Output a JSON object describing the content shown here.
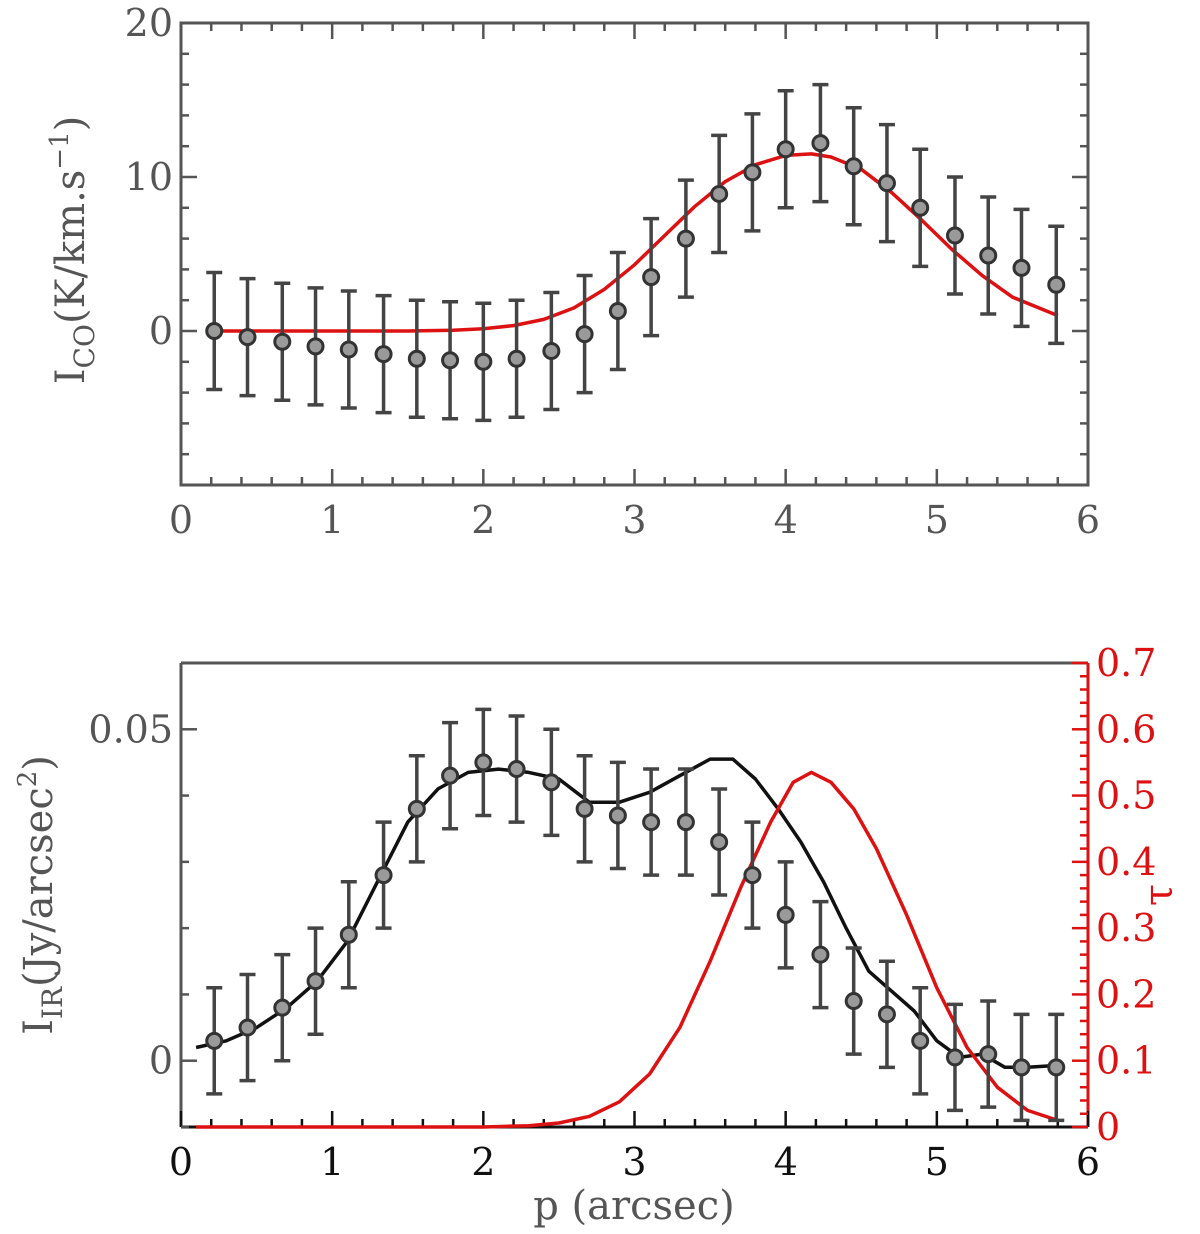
{
  "colors": {
    "axis": "#555555",
    "errorbar": "#444444",
    "marker_fill": "#9a9a9a",
    "marker_edge": "#333333",
    "model_red": "#dd1111",
    "model_black": "#111111"
  },
  "chart_data": [
    {
      "type": "scatter",
      "name": "top",
      "xlim": [
        0,
        6
      ],
      "ylim": [
        -10,
        20
      ],
      "xticks": [
        "0",
        "1",
        "2",
        "3",
        "4",
        "5",
        "6"
      ],
      "yticks": [
        "0",
        "10",
        "20"
      ],
      "ylabel": {
        "main": "I",
        "sub": "CO",
        "rest": "(K/km.s",
        "sup": "−1",
        "close": ")"
      },
      "points": {
        "x": [
          0.22,
          0.44,
          0.67,
          0.89,
          1.11,
          1.34,
          1.56,
          1.78,
          2.0,
          2.22,
          2.45,
          2.67,
          2.89,
          3.11,
          3.34,
          3.56,
          3.78,
          4.0,
          4.23,
          4.45,
          4.67,
          4.89,
          5.12,
          5.34,
          5.56,
          5.79
        ],
        "y": [
          0.0,
          -0.4,
          -0.7,
          -1.0,
          -1.2,
          -1.5,
          -1.8,
          -1.9,
          -2.0,
          -1.8,
          -1.3,
          -0.2,
          1.3,
          3.5,
          6.0,
          8.9,
          10.3,
          11.8,
          12.2,
          10.7,
          9.6,
          8.0,
          6.2,
          4.9,
          4.1,
          3.0
        ],
        "err": [
          3.8,
          3.8,
          3.8,
          3.8,
          3.8,
          3.8,
          3.8,
          3.8,
          3.8,
          3.8,
          3.8,
          3.8,
          3.8,
          3.8,
          3.8,
          3.8,
          3.8,
          3.8,
          3.8,
          3.8,
          3.8,
          3.8,
          3.8,
          3.8,
          3.8,
          3.8
        ]
      },
      "series": [
        {
          "name": "CO model",
          "color": "#dd1111",
          "x": [
            0.2,
            0.5,
            1.0,
            1.5,
            1.8,
            2.0,
            2.2,
            2.4,
            2.6,
            2.8,
            3.0,
            3.2,
            3.4,
            3.6,
            3.8,
            4.0,
            4.17,
            4.3,
            4.5,
            4.7,
            4.9,
            5.1,
            5.3,
            5.5,
            5.8
          ],
          "y": [
            0.0,
            0.0,
            0.0,
            0.0,
            0.05,
            0.15,
            0.35,
            0.75,
            1.5,
            2.7,
            4.3,
            6.2,
            8.1,
            9.7,
            10.8,
            11.4,
            11.5,
            11.3,
            10.5,
            9.0,
            7.2,
            5.3,
            3.6,
            2.2,
            1.0
          ]
        }
      ]
    },
    {
      "type": "scatter",
      "name": "bottom",
      "xlim": [
        0,
        6
      ],
      "ylim": [
        -0.01,
        0.06
      ],
      "y2lim": [
        0,
        0.7
      ],
      "xticks": [
        "0",
        "1",
        "2",
        "3",
        "4",
        "5",
        "6"
      ],
      "yticks": [
        "0",
        "0.05"
      ],
      "y2ticks": [
        "0",
        "0.1",
        "0.2",
        "0.3",
        "0.4",
        "0.5",
        "0.6",
        "0.7"
      ],
      "xlabel": "p (arcsec)",
      "ylabel": {
        "main": "I",
        "sub": "IR",
        "rest": "(Jy/arcsec",
        "sup": "2",
        "close": ")"
      },
      "y2label": "τ",
      "points": {
        "x": [
          0.22,
          0.44,
          0.67,
          0.89,
          1.11,
          1.34,
          1.56,
          1.78,
          2.0,
          2.22,
          2.45,
          2.67,
          2.89,
          3.11,
          3.34,
          3.56,
          3.78,
          4.0,
          4.23,
          4.45,
          4.67,
          4.89,
          5.12,
          5.34,
          5.56,
          5.79
        ],
        "y": [
          0.003,
          0.005,
          0.008,
          0.012,
          0.019,
          0.028,
          0.038,
          0.043,
          0.045,
          0.044,
          0.042,
          0.038,
          0.037,
          0.036,
          0.036,
          0.033,
          0.028,
          0.022,
          0.016,
          0.009,
          0.007,
          0.003,
          0.0005,
          0.001,
          -0.001,
          -0.001
        ],
        "err": [
          0.008,
          0.008,
          0.008,
          0.008,
          0.008,
          0.008,
          0.008,
          0.008,
          0.008,
          0.008,
          0.008,
          0.008,
          0.008,
          0.008,
          0.008,
          0.008,
          0.008,
          0.008,
          0.008,
          0.008,
          0.008,
          0.008,
          0.008,
          0.008,
          0.008,
          0.008
        ]
      },
      "series": [
        {
          "name": "IR model",
          "color": "#111111",
          "axis": "left",
          "x": [
            0.1,
            0.3,
            0.5,
            0.7,
            0.9,
            1.1,
            1.3,
            1.5,
            1.7,
            1.9,
            2.1,
            2.3,
            2.5,
            2.7,
            2.9,
            3.1,
            3.3,
            3.5,
            3.65,
            3.8,
            3.95,
            4.1,
            4.25,
            4.4,
            4.55,
            4.7,
            4.85,
            5.0,
            5.15,
            5.3,
            5.45,
            5.6,
            5.8
          ],
          "y": [
            0.002,
            0.003,
            0.005,
            0.008,
            0.012,
            0.018,
            0.027,
            0.036,
            0.041,
            0.0435,
            0.044,
            0.0435,
            0.0425,
            0.039,
            0.039,
            0.0405,
            0.043,
            0.0455,
            0.0455,
            0.0425,
            0.038,
            0.033,
            0.027,
            0.02,
            0.0135,
            0.0105,
            0.0075,
            0.003,
            0.0005,
            0.001,
            -0.001,
            -0.001,
            -0.0007
          ]
        },
        {
          "name": "tau",
          "color": "#dd1111",
          "axis": "right",
          "x": [
            0.1,
            1.0,
            2.0,
            2.3,
            2.5,
            2.7,
            2.9,
            3.1,
            3.3,
            3.5,
            3.7,
            3.9,
            4.05,
            4.17,
            4.3,
            4.45,
            4.6,
            4.8,
            5.0,
            5.2,
            5.4,
            5.6,
            5.8
          ],
          "y": [
            0.0,
            0.0,
            0.0,
            0.002,
            0.006,
            0.016,
            0.038,
            0.08,
            0.15,
            0.25,
            0.36,
            0.46,
            0.52,
            0.535,
            0.52,
            0.48,
            0.42,
            0.32,
            0.21,
            0.12,
            0.06,
            0.025,
            0.01
          ]
        }
      ]
    }
  ]
}
